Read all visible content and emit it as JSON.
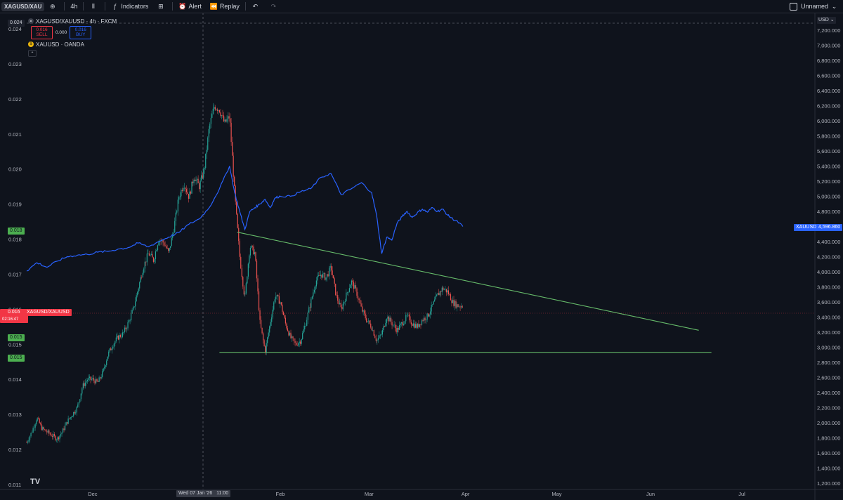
{
  "toolbar": {
    "symbol": "XAGUSD/XAU",
    "interval": "4h",
    "indicators": "Indicators",
    "alert": "Alert",
    "replay": "Replay",
    "layout_name": "Unnamed"
  },
  "legend": {
    "title": "XAGUSD/XAUUSD · 4h · FXCM",
    "sell_price": "0.016",
    "sell_label": "SELL",
    "spread": "0.000",
    "buy_price": "0.016",
    "buy_label": "BUY",
    "overlay": "XAUUSD · OANDA"
  },
  "tags": {
    "crosshair_price": "0.024",
    "level_a": "0.018",
    "level_b": "0.015",
    "level_c": "0.015",
    "last_price": "0.016",
    "countdown": "02:16:47",
    "last_name": "XAGUSD/XAUUSD",
    "xau_name": "XAUUSD",
    "xau_price": "4,596.860",
    "currency": "USD",
    "crosshair_date": "Wed 07 Jan '26",
    "crosshair_time": "11:00"
  },
  "colors": {
    "up": "#26a69a",
    "down": "#ef5350",
    "xau_line": "#2962ff",
    "trendline": "#66bb6a",
    "background": "#0f131c"
  },
  "chart_data": {
    "type": "line",
    "x_labels": [
      "Dec",
      "Feb",
      "Mar",
      "Apr",
      "May",
      "Jun",
      "Jul"
    ],
    "left_axis": {
      "ticks": [
        "0.024",
        "0.023",
        "0.022",
        "0.021",
        "0.020",
        "0.019",
        "0.018",
        "0.017",
        "0.016",
        "0.015",
        "0.014",
        "0.013",
        "0.012",
        "0.011"
      ],
      "ylim": [
        0.011,
        0.024
      ]
    },
    "right_axis": {
      "ticks": [
        "7,200.000",
        "7,000.000",
        "6,800.000",
        "6,600.000",
        "6,400.000",
        "6,200.000",
        "6,000.000",
        "5,800.000",
        "5,600.000",
        "5,400.000",
        "5,200.000",
        "5,000.000",
        "4,800.000",
        "4,600.000",
        "4,400.000",
        "4,200.000",
        "4,000.000",
        "3,800.000",
        "3,600.000",
        "3,400.000",
        "3,200.000",
        "3,000.000",
        "2,800.000",
        "2,600.000",
        "2,400.000",
        "2,200.000",
        "2,000.000",
        "1,800.000",
        "1,600.000",
        "1,400.000",
        "1,200.000"
      ],
      "ylim": [
        1100,
        7350
      ]
    },
    "series": [
      {
        "name": "XAGUSD/XAUUSD",
        "style": "candles",
        "axis": "left",
        "points": [
          [
            0.0,
            0.0122
          ],
          [
            0.02,
            0.0125
          ],
          [
            0.04,
            0.0129
          ],
          [
            0.06,
            0.0126
          ],
          [
            0.08,
            0.0125
          ],
          [
            0.1,
            0.0124
          ],
          [
            0.12,
            0.0123
          ],
          [
            0.14,
            0.0125
          ],
          [
            0.16,
            0.0128
          ],
          [
            0.18,
            0.013
          ],
          [
            0.2,
            0.0132
          ],
          [
            0.22,
            0.0138
          ],
          [
            0.24,
            0.014
          ],
          [
            0.26,
            0.014
          ],
          [
            0.28,
            0.0139
          ],
          [
            0.3,
            0.0142
          ],
          [
            0.32,
            0.0147
          ],
          [
            0.34,
            0.015
          ],
          [
            0.36,
            0.0152
          ],
          [
            0.38,
            0.0153
          ],
          [
            0.4,
            0.0156
          ],
          [
            0.42,
            0.016
          ],
          [
            0.44,
            0.0166
          ],
          [
            0.46,
            0.0172
          ],
          [
            0.48,
            0.0176
          ],
          [
            0.5,
            0.0174
          ],
          [
            0.52,
            0.018
          ],
          [
            0.54,
            0.0179
          ],
          [
            0.56,
            0.0176
          ],
          [
            0.58,
            0.0183
          ],
          [
            0.6,
            0.0192
          ],
          [
            0.62,
            0.0196
          ],
          [
            0.64,
            0.0192
          ],
          [
            0.66,
            0.0198
          ],
          [
            0.68,
            0.0195
          ],
          [
            0.7,
            0.02
          ],
          [
            0.72,
            0.0212
          ],
          [
            0.74,
            0.0218
          ],
          [
            0.76,
            0.0217
          ],
          [
            0.78,
            0.0213
          ],
          [
            0.8,
            0.0215
          ],
          [
            0.82,
            0.0193
          ],
          [
            0.84,
            0.0175
          ],
          [
            0.86,
            0.0163
          ],
          [
            0.88,
            0.0178
          ],
          [
            0.9,
            0.0176
          ],
          [
            0.92,
            0.0156
          ],
          [
            0.94,
            0.0148
          ],
          [
            0.96,
            0.0156
          ],
          [
            0.98,
            0.0164
          ],
          [
            1.0,
            0.0162
          ],
          [
            1.02,
            0.0156
          ],
          [
            1.04,
            0.0152
          ],
          [
            1.06,
            0.015
          ],
          [
            1.08,
            0.0151
          ],
          [
            1.1,
            0.0156
          ],
          [
            1.12,
            0.0162
          ],
          [
            1.14,
            0.0168
          ],
          [
            1.16,
            0.017
          ],
          [
            1.18,
            0.0169
          ],
          [
            1.2,
            0.0172
          ],
          [
            1.22,
            0.0164
          ],
          [
            1.24,
            0.016
          ],
          [
            1.26,
            0.0164
          ],
          [
            1.28,
            0.0168
          ],
          [
            1.3,
            0.0165
          ],
          [
            1.32,
            0.016
          ],
          [
            1.34,
            0.0157
          ],
          [
            1.36,
            0.0155
          ],
          [
            1.38,
            0.0151
          ],
          [
            1.4,
            0.0153
          ],
          [
            1.42,
            0.0158
          ],
          [
            1.44,
            0.0156
          ],
          [
            1.46,
            0.0154
          ],
          [
            1.48,
            0.0156
          ],
          [
            1.5,
            0.0158
          ],
          [
            1.52,
            0.0156
          ],
          [
            1.54,
            0.0155
          ],
          [
            1.56,
            0.0157
          ],
          [
            1.58,
            0.0158
          ],
          [
            1.6,
            0.0161
          ],
          [
            1.62,
            0.0164
          ],
          [
            1.64,
            0.0166
          ],
          [
            1.66,
            0.0165
          ],
          [
            1.68,
            0.0162
          ],
          [
            1.7,
            0.0161
          ],
          [
            1.72,
            0.0161
          ]
        ],
        "note_x": "0 = Nov 27, 1 = Feb 1, 2 = Apr 8 (approximate spacing between labelled months)"
      },
      {
        "name": "XAUUSD",
        "style": "line",
        "axis": "right",
        "points": [
          [
            0.0,
            4010
          ],
          [
            0.04,
            4120
          ],
          [
            0.08,
            4060
          ],
          [
            0.12,
            4140
          ],
          [
            0.16,
            4200
          ],
          [
            0.2,
            4220
          ],
          [
            0.24,
            4230
          ],
          [
            0.28,
            4260
          ],
          [
            0.32,
            4270
          ],
          [
            0.36,
            4300
          ],
          [
            0.4,
            4320
          ],
          [
            0.44,
            4380
          ],
          [
            0.48,
            4330
          ],
          [
            0.52,
            4400
          ],
          [
            0.56,
            4460
          ],
          [
            0.6,
            4520
          ],
          [
            0.64,
            4630
          ],
          [
            0.68,
            4700
          ],
          [
            0.72,
            4850
          ],
          [
            0.76,
            5100
          ],
          [
            0.8,
            5400
          ],
          [
            0.82,
            5050
          ],
          [
            0.84,
            4800
          ],
          [
            0.86,
            4560
          ],
          [
            0.88,
            4800
          ],
          [
            0.9,
            4850
          ],
          [
            0.92,
            4900
          ],
          [
            0.94,
            4960
          ],
          [
            0.96,
            4850
          ],
          [
            0.98,
            4980
          ],
          [
            1.0,
            5000
          ],
          [
            1.04,
            5000
          ],
          [
            1.08,
            5060
          ],
          [
            1.12,
            5100
          ],
          [
            1.16,
            5250
          ],
          [
            1.2,
            5300
          ],
          [
            1.24,
            5020
          ],
          [
            1.28,
            5100
          ],
          [
            1.32,
            5180
          ],
          [
            1.36,
            5050
          ],
          [
            1.38,
            4740
          ],
          [
            1.4,
            4240
          ],
          [
            1.42,
            4460
          ],
          [
            1.44,
            4420
          ],
          [
            1.46,
            4640
          ],
          [
            1.48,
            4730
          ],
          [
            1.5,
            4800
          ],
          [
            1.52,
            4720
          ],
          [
            1.54,
            4780
          ],
          [
            1.56,
            4830
          ],
          [
            1.58,
            4790
          ],
          [
            1.6,
            4850
          ],
          [
            1.62,
            4800
          ],
          [
            1.64,
            4830
          ],
          [
            1.66,
            4750
          ],
          [
            1.68,
            4700
          ],
          [
            1.7,
            4660
          ],
          [
            1.72,
            4600
          ]
        ]
      }
    ],
    "trendlines": [
      {
        "name": "descending resistance",
        "from": [
          0.83,
          0.0182
        ],
        "to": [
          2.65,
          0.0154
        ],
        "axis": "left"
      },
      {
        "name": "horizontal support",
        "from": [
          0.76,
          0.01477
        ],
        "to": [
          2.7,
          0.01477
        ],
        "axis": "left"
      }
    ],
    "grid": false,
    "legend_position": "top-left"
  }
}
